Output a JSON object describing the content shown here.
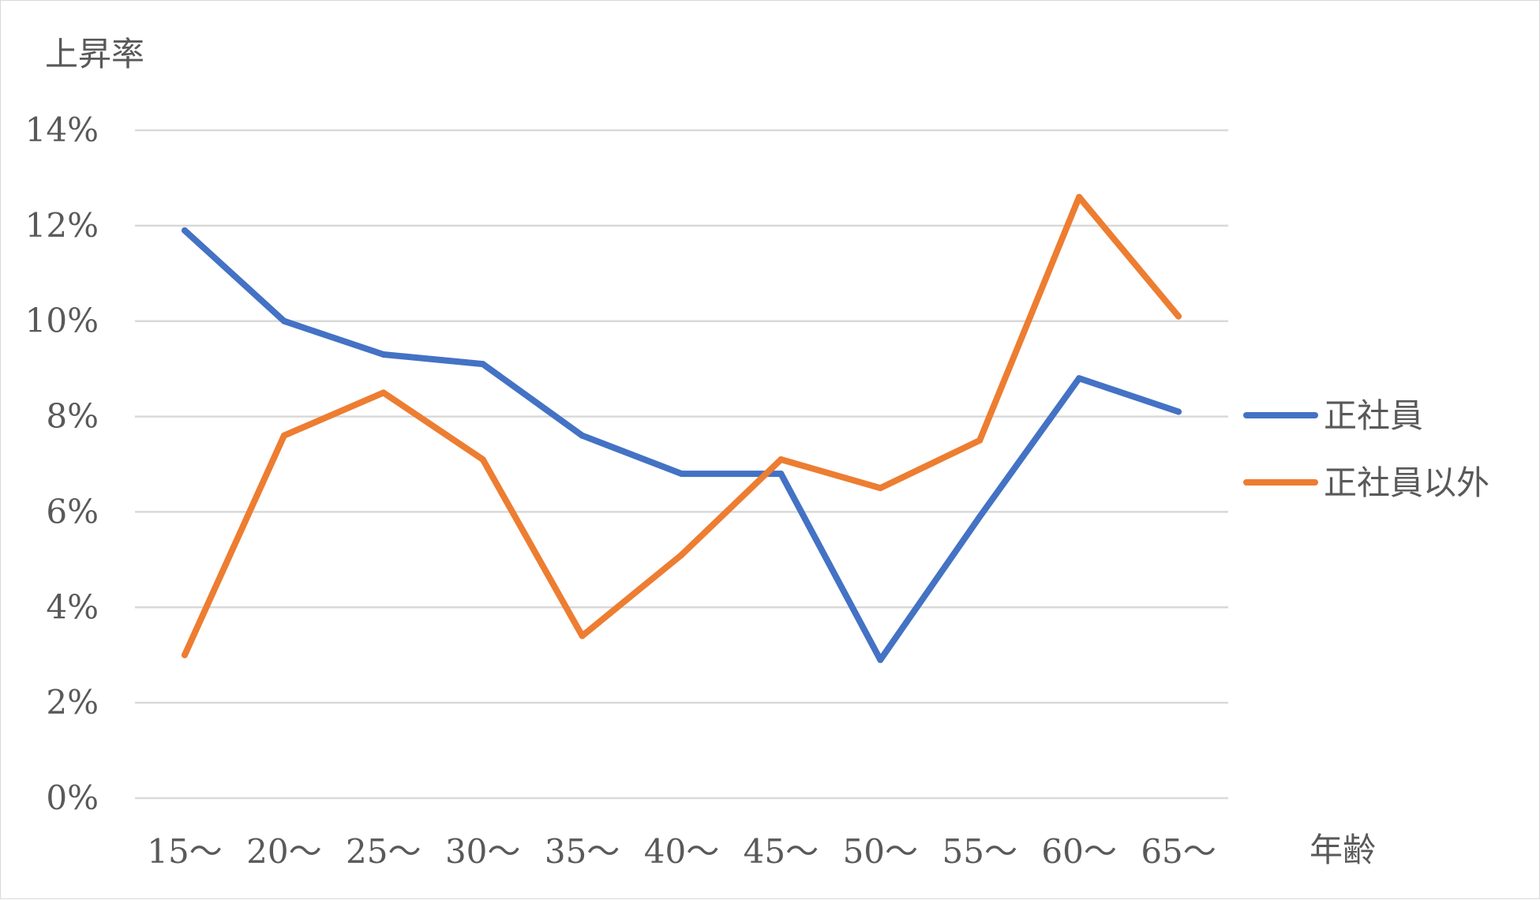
{
  "chart_data": {
    "type": "line",
    "title": "",
    "ylabel": "上昇率",
    "xlabel": "年齢",
    "categories": [
      "15～",
      "20～",
      "25～",
      "30～",
      "35～",
      "40～",
      "45～",
      "50～",
      "55～",
      "60～",
      "65～"
    ],
    "yticks": [
      "0%",
      "2%",
      "4%",
      "6%",
      "8%",
      "10%",
      "12%",
      "14%"
    ],
    "ylim": [
      0,
      14
    ],
    "y_unit": "%",
    "grid": true,
    "legend_position": "right",
    "series": [
      {
        "name": "正社員",
        "color": "#4472c4",
        "values": [
          11.9,
          10.0,
          9.3,
          9.1,
          7.6,
          6.8,
          6.8,
          2.9,
          5.9,
          8.8,
          8.1
        ]
      },
      {
        "name": "正社員以外",
        "color": "#ed7d31",
        "values": [
          3.0,
          7.6,
          8.5,
          7.1,
          3.4,
          5.1,
          7.1,
          6.5,
          7.5,
          12.6,
          10.1
        ]
      }
    ]
  }
}
